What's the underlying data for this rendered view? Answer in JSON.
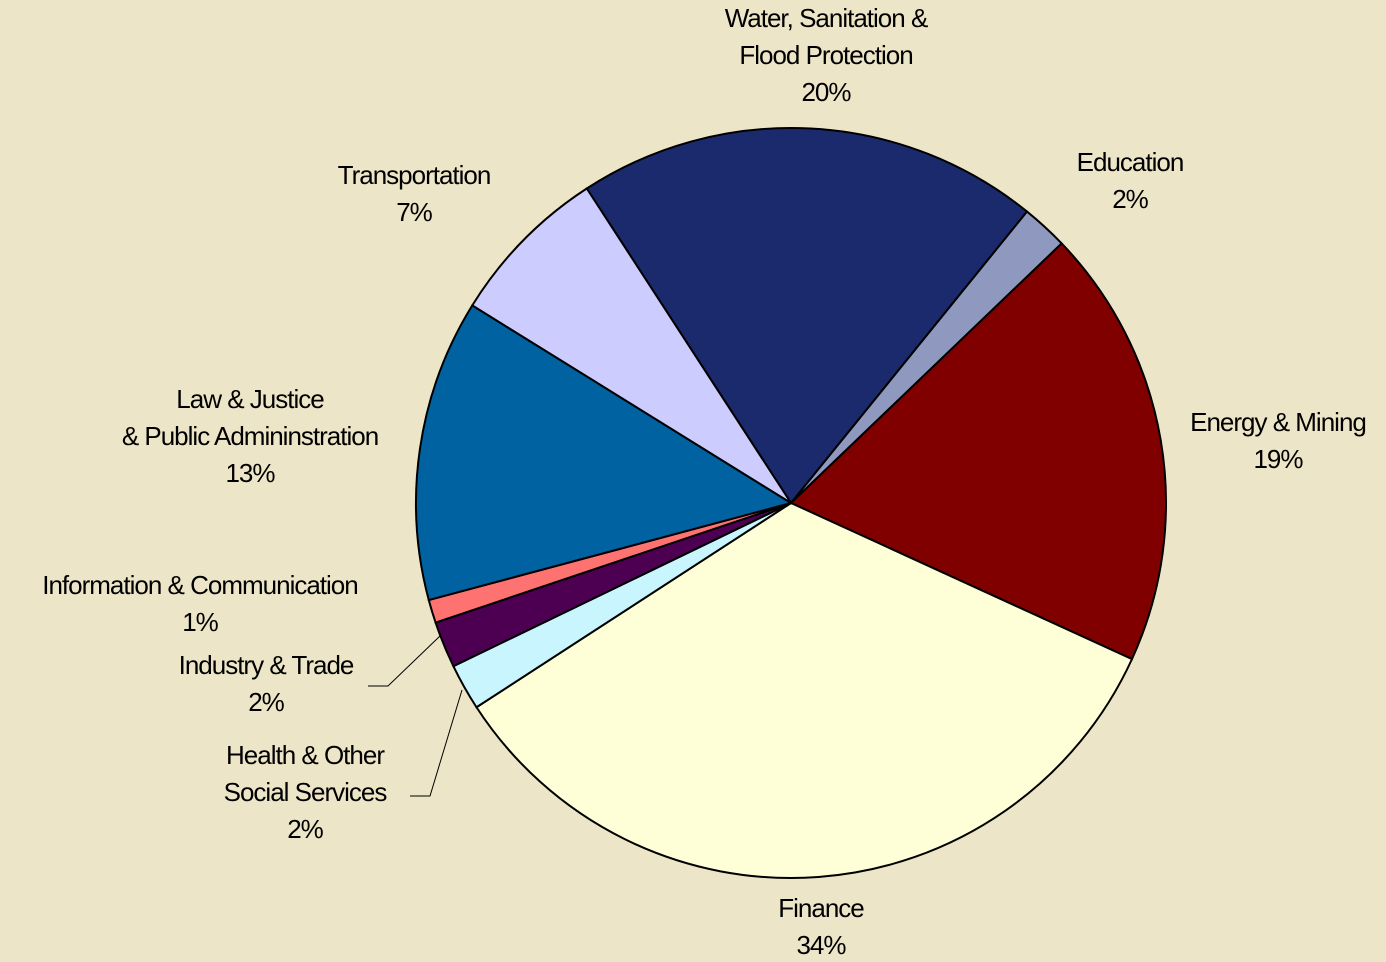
{
  "chart_data": {
    "type": "pie",
    "categories": [
      "Water, Sanitation &\nFlood Protection",
      "Education",
      "Energy & Mining",
      "Finance",
      "Health & Other\nSocial Services",
      "Industry & Trade",
      "Information & Communication",
      "Law & Justice\n& Public Admininstration",
      "Transportation"
    ],
    "values": [
      20,
      2,
      19,
      34,
      2,
      2,
      1,
      13,
      7
    ],
    "value_labels": [
      "20%",
      "2%",
      "19%",
      "34%",
      "2%",
      "2%",
      "1%",
      "13%",
      "7%"
    ],
    "colors": [
      "#1b2a6d",
      "#8f99c0",
      "#800000",
      "#ffffd7",
      "#c9f5ff",
      "#4d0052",
      "#ff7272",
      "#0062a1",
      "#ccccff"
    ]
  }
}
